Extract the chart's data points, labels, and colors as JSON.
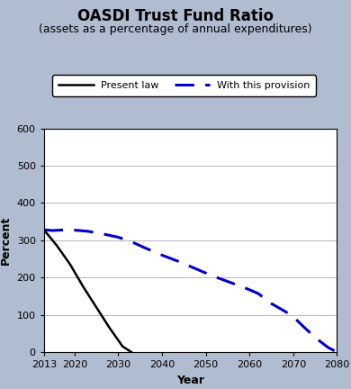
{
  "title": "OASDI Trust Fund Ratio",
  "subtitle": "(assets as a percentage of annual expenditures)",
  "xlabel": "Year",
  "ylabel": "Percent",
  "xlim": [
    2013,
    2080
  ],
  "ylim": [
    0,
    600
  ],
  "xticks": [
    2013,
    2020,
    2030,
    2040,
    2050,
    2060,
    2070,
    2080
  ],
  "yticks": [
    0,
    100,
    200,
    300,
    400,
    500,
    600
  ],
  "background_color": "#b0bcd0",
  "plot_bg_color": "#ffffff",
  "present_law_x": [
    2013,
    2016,
    2019,
    2022,
    2025,
    2028,
    2031,
    2033
  ],
  "present_law_y": [
    328,
    285,
    235,
    175,
    120,
    65,
    15,
    0
  ],
  "provision_x": [
    2013,
    2015,
    2018,
    2020,
    2023,
    2026,
    2030,
    2033,
    2036,
    2040,
    2044,
    2048,
    2050,
    2053,
    2056,
    2059,
    2062,
    2065,
    2068,
    2070,
    2072,
    2074,
    2076,
    2078,
    2080
  ],
  "provision_y": [
    328,
    326,
    328,
    327,
    324,
    318,
    308,
    296,
    280,
    260,
    242,
    222,
    212,
    198,
    185,
    172,
    157,
    130,
    110,
    95,
    72,
    50,
    30,
    12,
    0
  ],
  "present_law_color": "#000000",
  "provision_color": "#0000cc",
  "legend_present_law": "Present law",
  "legend_provision": "With this provision",
  "title_fontsize": 12,
  "subtitle_fontsize": 9,
  "axis_label_fontsize": 9,
  "tick_fontsize": 8,
  "legend_fontsize": 8
}
